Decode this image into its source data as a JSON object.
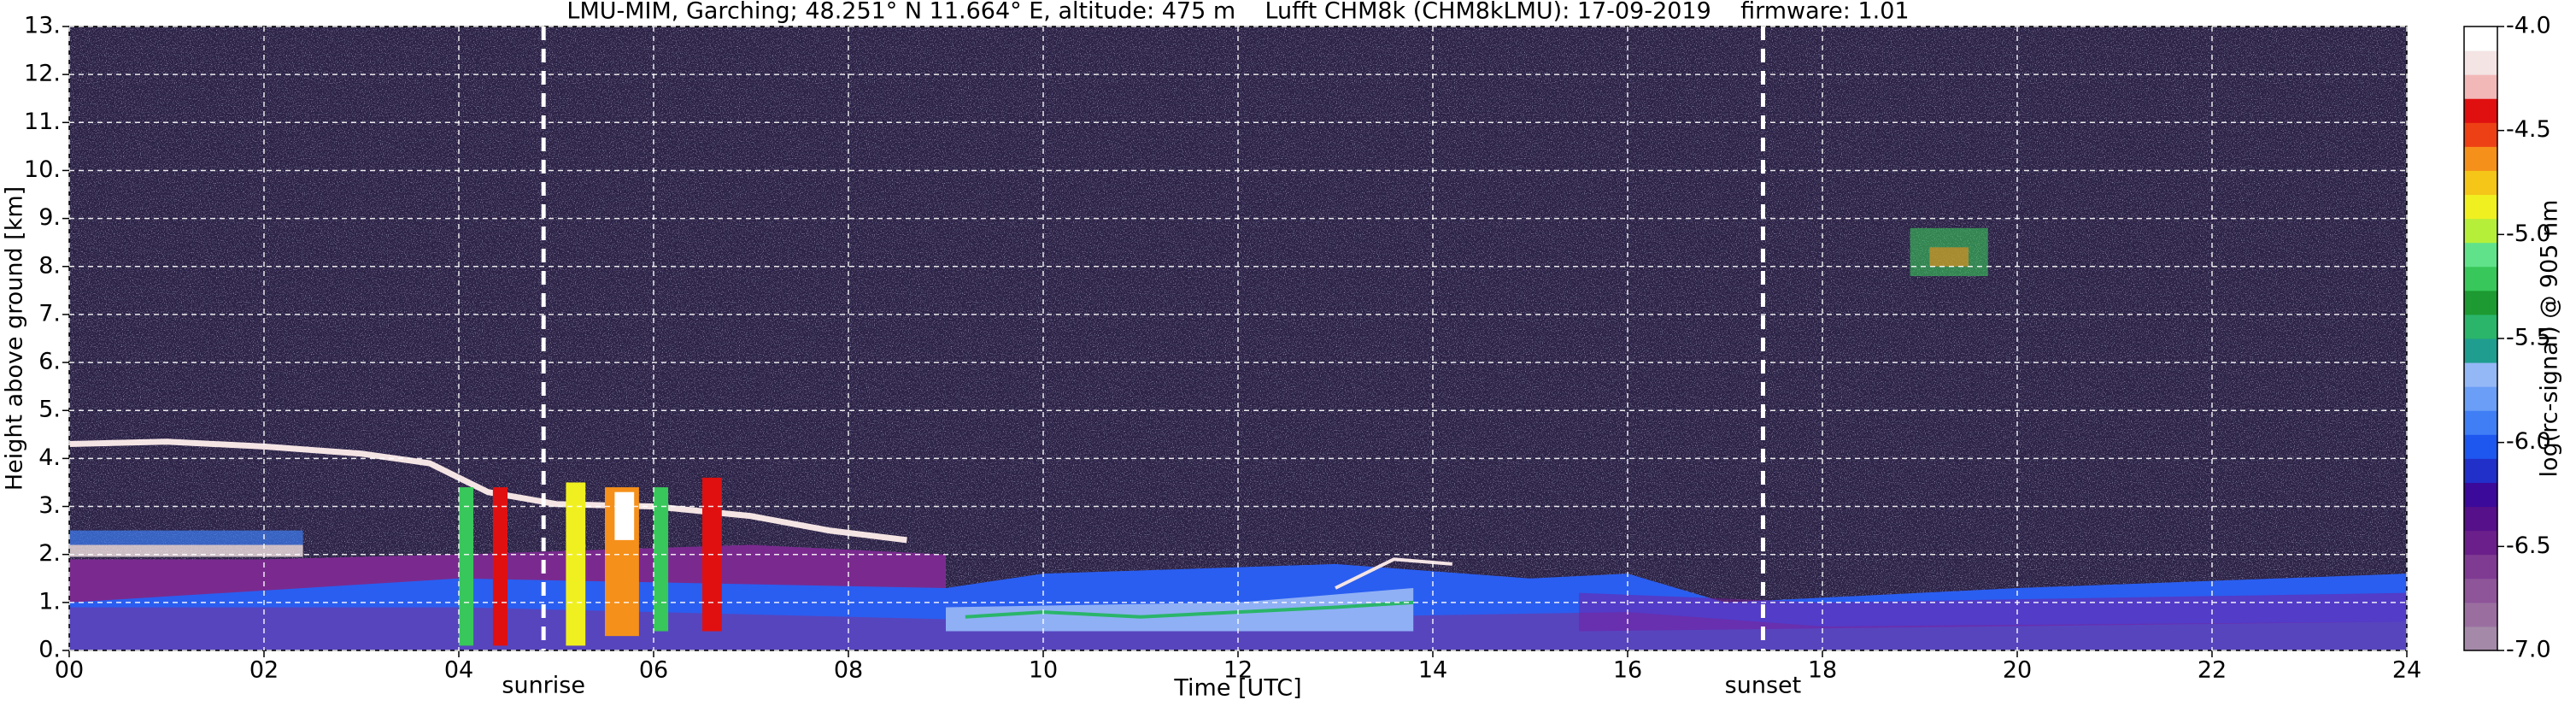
{
  "chart_data": {
    "type": "heatmap",
    "title": "LMU-MIM, Garching; 48.251° N 11.664° E, altitude: 475 m    Lufft CHM8k (CHM8kLMU): 17-09-2019    firmware: 1.01",
    "x_label": "Time [UTC]",
    "y_label": "Height above ground [km]",
    "xlim": [
      0,
      24
    ],
    "xticks": [
      {
        "value": 0,
        "label": "00"
      },
      {
        "value": 2,
        "label": "02"
      },
      {
        "value": 4,
        "label": "04"
      },
      {
        "value": 6,
        "label": "06"
      },
      {
        "value": 8,
        "label": "08"
      },
      10,
      12,
      14,
      16,
      18,
      20,
      22,
      24
    ],
    "ylim": [
      0,
      13
    ],
    "yticks": [
      {
        "value": 0,
        "label": "0."
      },
      {
        "value": 1,
        "label": "1."
      },
      {
        "value": 2,
        "label": "2."
      },
      {
        "value": 3,
        "label": "3."
      },
      {
        "value": 4,
        "label": "4."
      },
      {
        "value": 5,
        "label": "5."
      },
      {
        "value": 6,
        "label": "6."
      },
      {
        "value": 7,
        "label": "7."
      },
      {
        "value": 8,
        "label": "8."
      },
      {
        "value": 9,
        "label": "9."
      },
      {
        "value": 10,
        "label": "10."
      },
      {
        "value": 11,
        "label": "11."
      },
      {
        "value": 12,
        "label": "12."
      },
      {
        "value": 13,
        "label": "13."
      }
    ],
    "grid": true,
    "annotations": [
      {
        "x": 4.87,
        "label": "sunrise"
      },
      {
        "x": 17.39,
        "label": "sunset"
      }
    ],
    "colorbar": {
      "label": "log(rc-signal) @ 905 nm",
      "lim": [
        -7.0,
        -4.0
      ],
      "ticks": [
        {
          "value": -7.0,
          "label": "-7.0"
        },
        {
          "value": -6.5,
          "label": "-6.5"
        },
        {
          "value": -6.0,
          "label": "-6.0"
        },
        {
          "value": -5.5,
          "label": "-5.5"
        },
        {
          "value": -5.0,
          "label": "-5.0"
        },
        {
          "value": -4.5,
          "label": "-4.5"
        },
        {
          "value": -4.0,
          "label": "-4.0"
        }
      ],
      "colors": [
        "#a48aa8",
        "#9a6fa0",
        "#8e5599",
        "#7f3b92",
        "#6b1f8a",
        "#561089",
        "#3b0a9a",
        "#2030c8",
        "#1e56f0",
        "#3f7ef5",
        "#6a9ef7",
        "#94b8f6",
        "#1f9d8f",
        "#2ab56a",
        "#1e9a32",
        "#38c75a",
        "#60e28a",
        "#b6ef3a",
        "#f0f020",
        "#f5c518",
        "#f5901a",
        "#ee4015",
        "#e01010",
        "#f2b8b8",
        "#f4e4e4",
        "#ffffff"
      ]
    }
  }
}
